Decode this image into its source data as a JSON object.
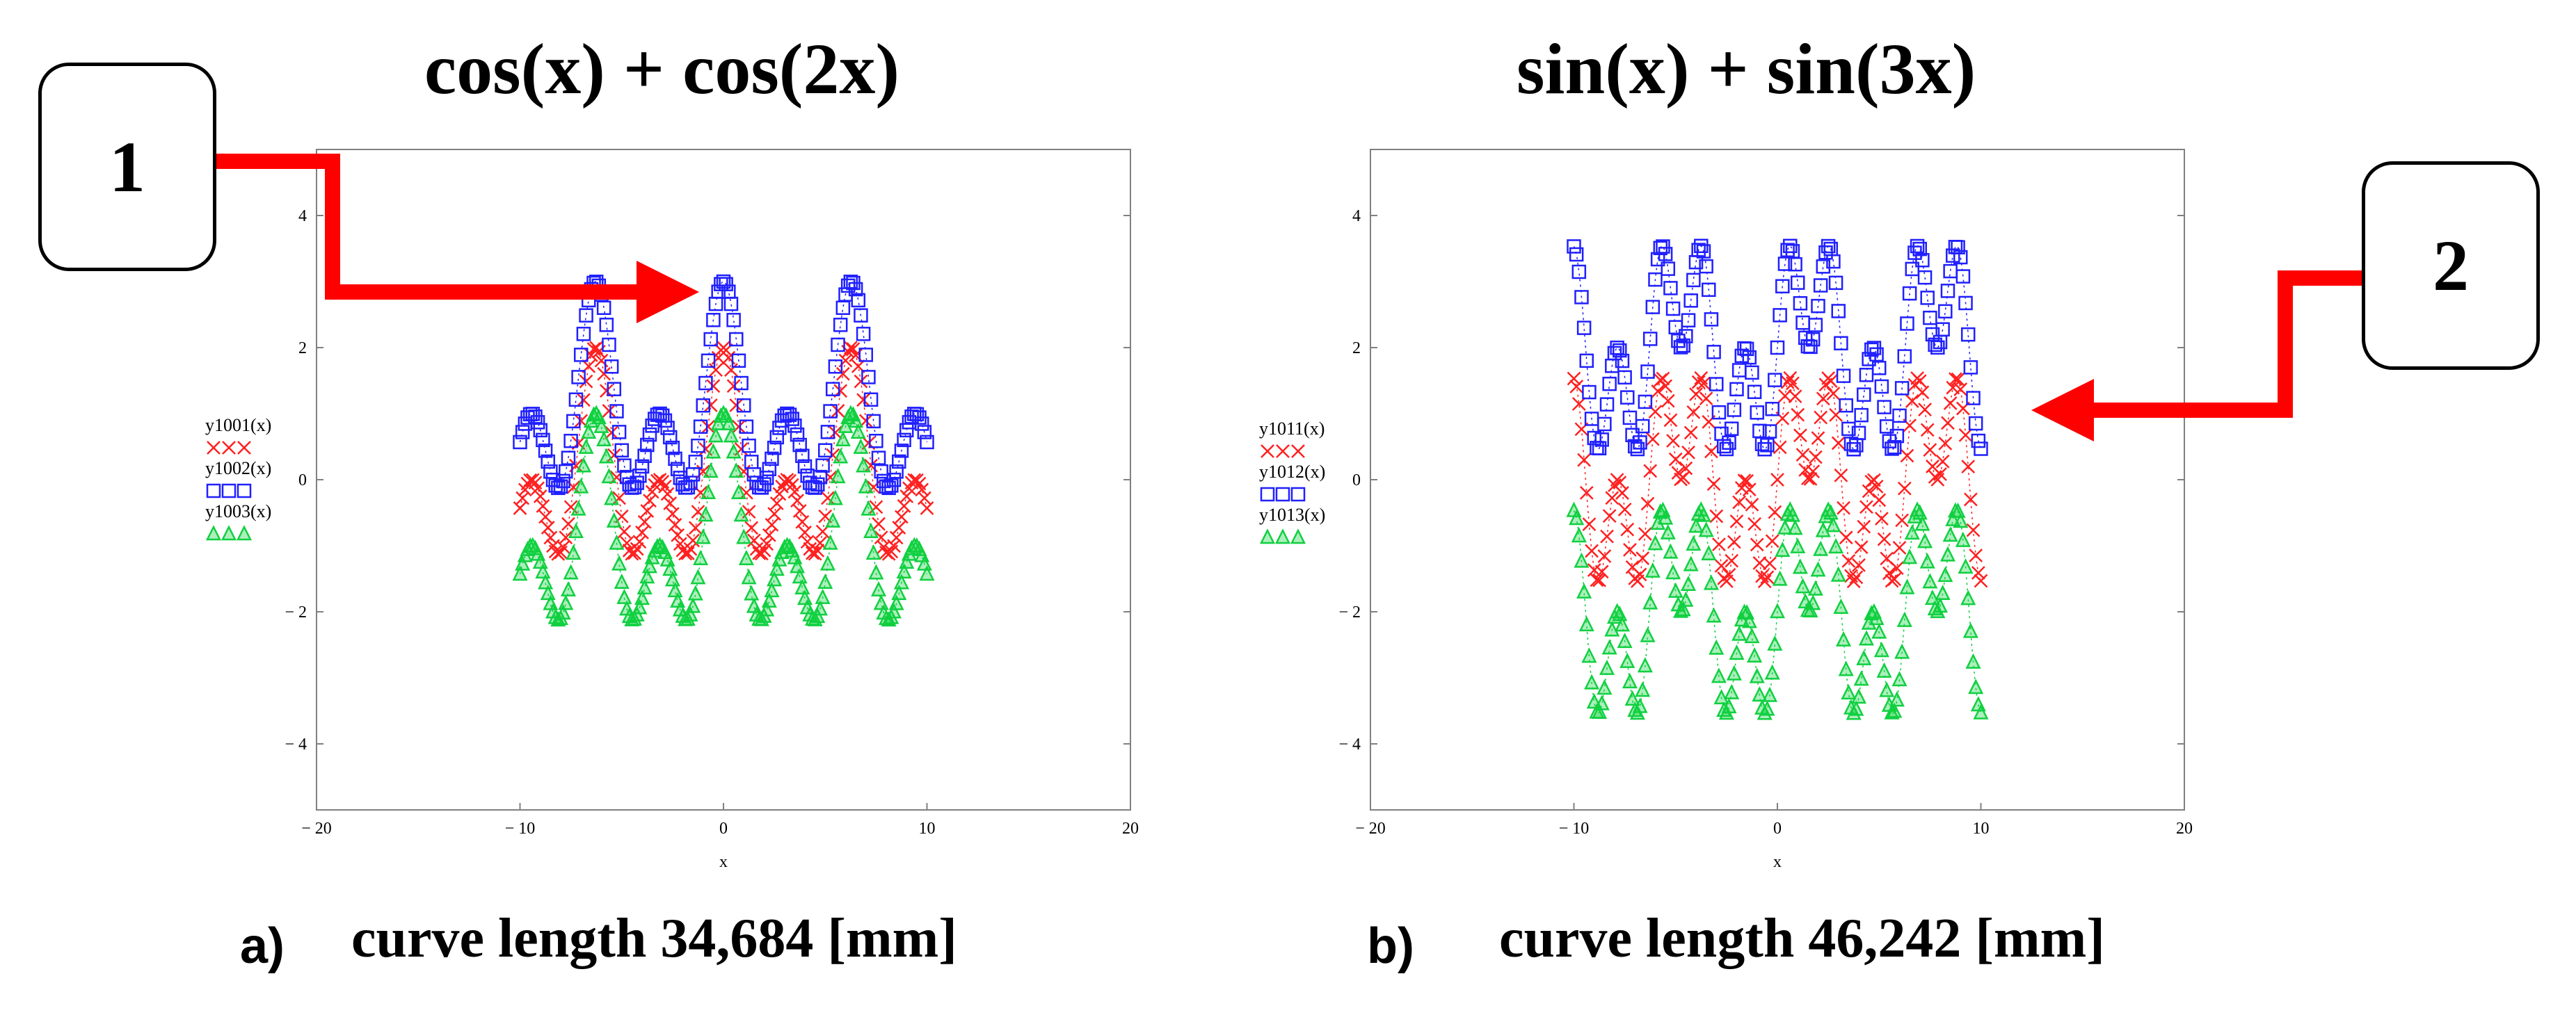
{
  "chart_data": [
    {
      "type": "scatter",
      "title": "cos(x) + cos(2x)",
      "xlabel": "x",
      "xlim": [
        -20,
        20
      ],
      "ylim": [
        -5,
        5
      ],
      "x_ticks": [
        "− 20",
        "− 10",
        "0",
        "10",
        "20"
      ],
      "x_tick_values": [
        -20,
        -10,
        0,
        10,
        20
      ],
      "y_ticks": [
        "− 4",
        "− 2",
        "0",
        "2",
        "4"
      ],
      "y_tick_values": [
        -4,
        -2,
        0,
        2,
        4
      ],
      "x_range": [
        -10,
        10
      ],
      "series": [
        {
          "name": "y1001(x)",
          "expression": "cos(x) + cos(2x)",
          "offset": 0,
          "color": "#ff2020",
          "marker": "x"
        },
        {
          "name": "y1002(x)",
          "expression": "cos(x) + cos(2x) + 1",
          "offset": 1,
          "color": "#2020ff",
          "marker": "square"
        },
        {
          "name": "y1003(x)",
          "expression": "cos(x) + cos(2x) - 1",
          "offset": -1,
          "color": "#10d040",
          "marker": "triangle"
        }
      ],
      "legend_position": "left",
      "caption_letter": "a)",
      "caption": "curve length 34,684 [mm]"
    },
    {
      "type": "scatter",
      "title": "sin(x) + sin(3x)",
      "xlabel": "x",
      "xlim": [
        -20,
        20
      ],
      "ylim": [
        -5,
        5
      ],
      "x_ticks": [
        "− 20",
        "− 10",
        "0",
        "10",
        "20"
      ],
      "x_tick_values": [
        -20,
        -10,
        0,
        10,
        20
      ],
      "y_ticks": [
        "− 4",
        "− 2",
        "0",
        "2",
        "4"
      ],
      "y_tick_values": [
        -4,
        -2,
        0,
        2,
        4
      ],
      "x_range": [
        -10,
        10
      ],
      "series": [
        {
          "name": "y1011(x)",
          "expression": "sin(x) + sin(3x)",
          "offset": 0,
          "color": "#ff2020",
          "marker": "x"
        },
        {
          "name": "y1012(x)",
          "expression": "sin(x) + sin(3x) + 2",
          "offset": 2,
          "color": "#2020ff",
          "marker": "square"
        },
        {
          "name": "y1013(x)",
          "expression": "sin(x) + sin(3x) - 2",
          "offset": -2,
          "color": "#10d040",
          "marker": "triangle"
        }
      ],
      "legend_position": "left",
      "caption_letter": "b)",
      "caption": "curve length  46,242  [mm]"
    }
  ],
  "callouts": [
    {
      "label": "1",
      "arrow_color": "#ff0000"
    },
    {
      "label": "2",
      "arrow_color": "#ff0000"
    }
  ]
}
